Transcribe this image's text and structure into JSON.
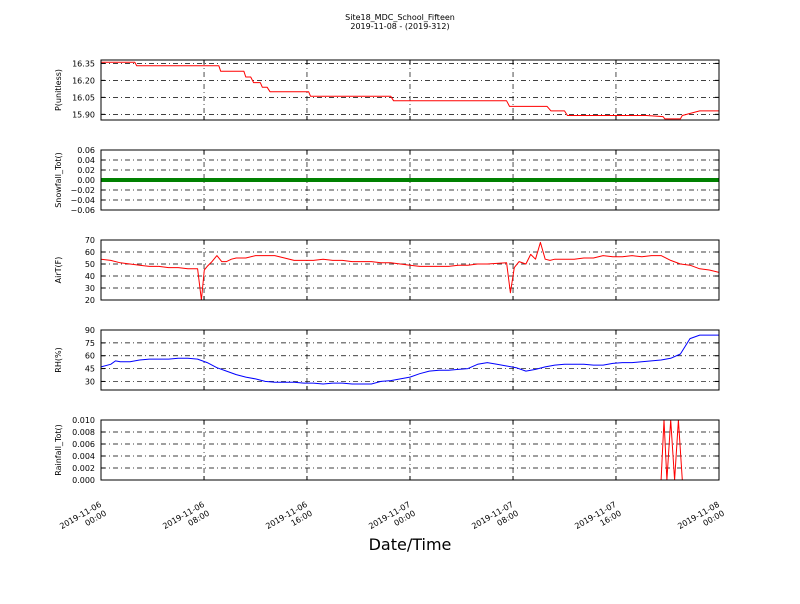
{
  "figure": {
    "title": "Site18_MDC_School_Fifteen",
    "subtitle": "2019-11-08 - (2019-312)",
    "xlabel": "Date/Time"
  },
  "chart_data": [
    {
      "type": "line",
      "ylabel": "P(unitless)",
      "ylim": [
        15.85,
        16.38
      ],
      "yticks": [
        "16.35",
        "16.20",
        "16.05",
        "15.90"
      ],
      "ytick_values": [
        16.35,
        16.2,
        16.05,
        15.9
      ],
      "color": "#ff0000",
      "grid": true,
      "series": [
        {
          "x": [
            0,
            0.35,
            3.5,
            3.7,
            12.2,
            12.4,
            14.8,
            15,
            15.5,
            15.8,
            16.5,
            16.7,
            17.2,
            17.5,
            21.5,
            21.7,
            30,
            30.3,
            37.8,
            38,
            42,
            42.3,
            45.5,
            45.7,
            46.2,
            46.6,
            48,
            48.3,
            55.5,
            55.8,
            56.5,
            58.2,
            58.4,
            60,
            60.2,
            62,
            64
          ],
          "y": [
            16.36,
            16.36,
            16.36,
            16.33,
            16.33,
            16.28,
            16.28,
            16.23,
            16.23,
            16.18,
            16.18,
            16.14,
            16.14,
            16.1,
            16.1,
            16.06,
            16.06,
            16.02,
            16.02,
            16.02,
            16.02,
            15.97,
            15.97,
            15.97,
            15.97,
            15.93,
            15.93,
            15.89,
            15.89,
            15.89,
            15.89,
            15.88,
            15.86,
            15.86,
            15.89,
            15.93,
            15.93
          ]
        }
      ]
    },
    {
      "type": "scatter",
      "ylabel": "Snowfall_Tot()",
      "ylim": [
        -0.06,
        0.06
      ],
      "yticks": [
        "0.06",
        "0.04",
        "0.02",
        "0.00",
        "−0.02",
        "−0.04",
        "−0.06"
      ],
      "ytick_values": [
        0.06,
        0.04,
        0.02,
        0,
        -0.02,
        -0.04,
        -0.06
      ],
      "color": "#008000",
      "grid": true,
      "series": [
        {
          "constant_value": 0,
          "x_range": [
            0,
            64
          ]
        }
      ]
    },
    {
      "type": "line",
      "ylabel": "AirT(F)",
      "ylim": [
        20,
        70
      ],
      "yticks": [
        "70",
        "60",
        "50",
        "40",
        "30",
        "20"
      ],
      "ytick_values": [
        70,
        60,
        50,
        40,
        30,
        20
      ],
      "color": "#ff0000",
      "grid": true,
      "series": [
        {
          "x": [
            0,
            1,
            2,
            3,
            4,
            5,
            6,
            7,
            8,
            9,
            10,
            10.4,
            10.7,
            11,
            11.5,
            12,
            12.5,
            13,
            13.5,
            14,
            15,
            16,
            17,
            18,
            19,
            20,
            21,
            22,
            23,
            24,
            25,
            26,
            27,
            28,
            29,
            30,
            31,
            32,
            33,
            34,
            35,
            36,
            37,
            38,
            39,
            40,
            42,
            42.4,
            42.8,
            43.3,
            44,
            44.5,
            45,
            45.5,
            46,
            46.5,
            47,
            48,
            49,
            50,
            51,
            52,
            53,
            54,
            55,
            56,
            57,
            58,
            59,
            60,
            61,
            62,
            63,
            64
          ],
          "y": [
            54,
            53,
            51,
            50,
            49,
            48,
            48,
            47,
            47,
            46,
            46,
            20,
            45,
            48,
            52,
            57,
            52,
            52,
            54,
            55,
            55,
            57,
            57,
            57,
            55,
            53,
            53,
            53,
            54,
            53,
            53,
            52,
            52,
            52,
            51,
            51,
            50,
            49,
            48,
            48,
            48,
            48,
            49,
            49,
            50,
            50,
            51,
            26,
            47,
            52,
            50,
            58,
            54,
            68,
            54,
            53,
            54,
            54,
            54,
            55,
            55,
            57,
            56,
            56,
            57,
            56,
            57,
            57,
            53,
            50,
            49,
            46,
            45,
            43
          ]
        }
      ]
    },
    {
      "type": "line",
      "ylabel": "RH(%)",
      "ylim": [
        20,
        90
      ],
      "yticks": [
        "90",
        "75",
        "60",
        "45",
        "30"
      ],
      "ytick_values": [
        90,
        75,
        60,
        45,
        30
      ],
      "color": "#0000ff",
      "grid": true,
      "series": [
        {
          "x": [
            0,
            1,
            1.5,
            2,
            3,
            4,
            5,
            6,
            7,
            8,
            9,
            10,
            11,
            12,
            13,
            14,
            15,
            16,
            17,
            18,
            19,
            20,
            21,
            22,
            23,
            24,
            25,
            26,
            27,
            28,
            29,
            30,
            31,
            32,
            33,
            34,
            35,
            36,
            37,
            38,
            39,
            40,
            41,
            42,
            43,
            44,
            45,
            46,
            47,
            48,
            49,
            50,
            51,
            52,
            53,
            54,
            55,
            56,
            57,
            58,
            59,
            60,
            61,
            62,
            63,
            64
          ],
          "y": [
            47,
            50,
            54,
            53,
            53,
            55,
            56,
            56,
            56,
            57,
            57,
            56,
            52,
            46,
            42,
            38,
            35,
            33,
            30,
            29,
            29,
            29,
            28,
            28,
            27,
            28,
            28,
            27,
            27,
            27,
            30,
            31,
            33,
            35,
            39,
            42,
            43,
            43,
            44,
            45,
            50,
            52,
            50,
            48,
            46,
            42,
            44,
            47,
            49,
            50,
            50,
            50,
            49,
            49,
            51,
            52,
            52,
            53,
            54,
            55,
            57,
            62,
            80,
            84,
            84,
            84
          ]
        }
      ]
    },
    {
      "type": "line",
      "ylabel": "Rainfall_Tot()",
      "ylim": [
        0,
        0.01
      ],
      "yticks": [
        "0.010",
        "0.008",
        "0.006",
        "0.004",
        "0.002",
        "0.000"
      ],
      "ytick_values": [
        0.01,
        0.008,
        0.006,
        0.004,
        0.002,
        0
      ],
      "color": "#ff0000",
      "grid": true,
      "series": [
        {
          "x": [
            0,
            58,
            58.3,
            58.6,
            59,
            59.4,
            59.8,
            60.2,
            64
          ],
          "y": [
            0,
            0,
            0.01,
            0,
            0.01,
            0,
            0.01,
            0,
            0
          ]
        }
      ]
    }
  ],
  "x_axis": {
    "range": [
      0,
      64
    ],
    "tick_values": [
      0,
      10.67,
      21.33,
      32,
      42.67,
      53.33,
      64
    ],
    "tick_labels": [
      [
        "2019-11-06",
        "00:00"
      ],
      [
        "2019-11-06",
        "08:00"
      ],
      [
        "2019-11-06",
        "16:00"
      ],
      [
        "2019-11-07",
        "00:00"
      ],
      [
        "2019-11-07",
        "08:00"
      ],
      [
        "2019-11-07",
        "16:00"
      ],
      [
        "2019-11-08",
        "00:00"
      ]
    ]
  }
}
